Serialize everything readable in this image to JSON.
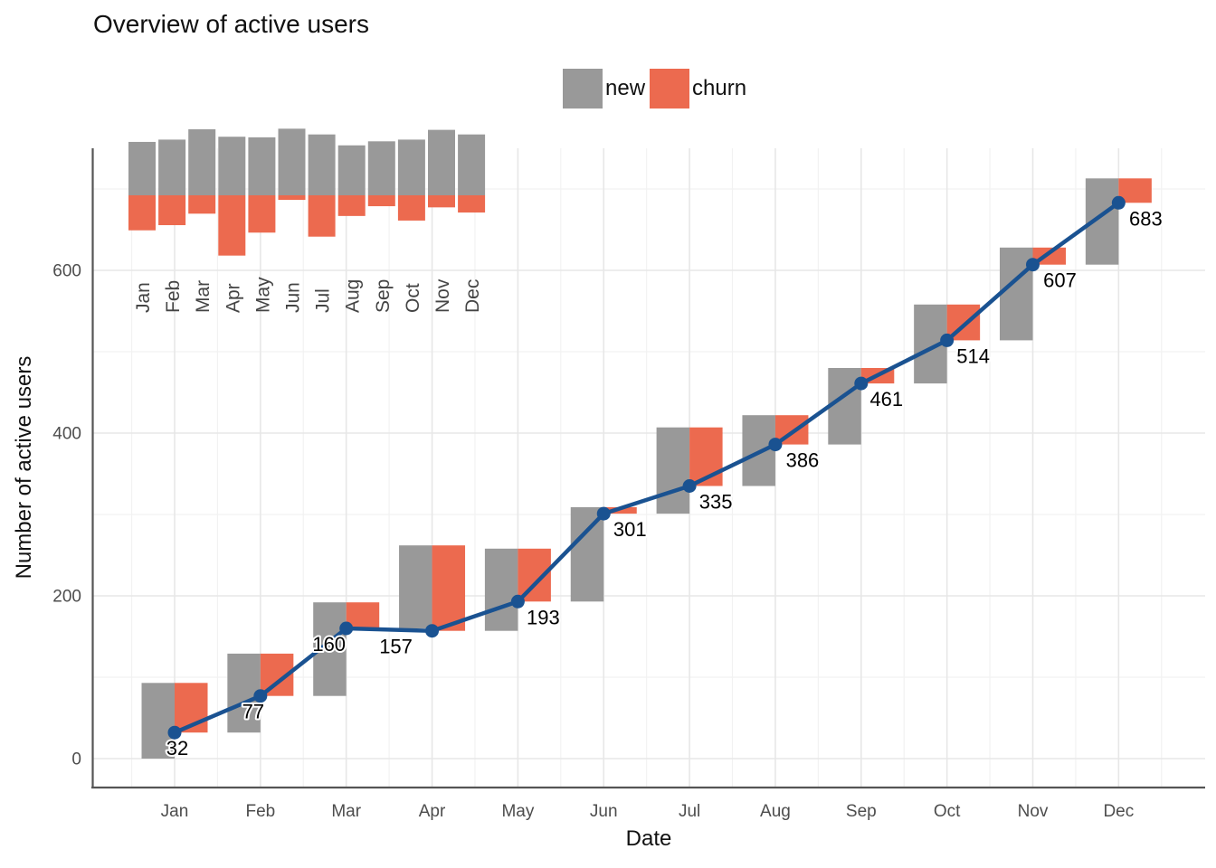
{
  "title": "Overview of active users",
  "legend": {
    "position": "top-center",
    "items": [
      {
        "label": "new",
        "color": "#999999"
      },
      {
        "label": "churn",
        "color": "#EC6A4F"
      }
    ]
  },
  "axes": {
    "x_title": "Date",
    "y_title": "Number of active users",
    "x_tick_labels": [
      "Jan",
      "Feb",
      "Mar",
      "Apr",
      "May",
      "Jun",
      "Jul",
      "Aug",
      "Sep",
      "Oct",
      "Nov",
      "Dec"
    ],
    "y_tick_labels": [
      "0",
      "200",
      "400",
      "600"
    ]
  },
  "colors": {
    "new": "#999999",
    "churn": "#EC6A4F",
    "line": "#1A5291",
    "grid_major": "#E7E7E7",
    "grid_minor": "#F2F2F2",
    "axis_line": "#555555",
    "tick_label": "#4D4D4D",
    "inset_label": "#444444",
    "point_label": "#000000"
  },
  "chart_data": {
    "type": "combo",
    "subtype": "monthly waterfall bars (new up / churn down from running total) with cumulative active-users line",
    "title": "Overview of active users",
    "xlabel": "Date",
    "ylabel": "Number of active users",
    "categories": [
      "Jan",
      "Feb",
      "Mar",
      "Apr",
      "May",
      "Jun",
      "Jul",
      "Aug",
      "Sep",
      "Oct",
      "Nov",
      "Dec"
    ],
    "series": [
      {
        "name": "active_users",
        "type": "line",
        "color": "#1A5291",
        "values": [
          32,
          77,
          160,
          157,
          193,
          301,
          335,
          386,
          461,
          514,
          607,
          683
        ]
      },
      {
        "name": "new",
        "type": "bar",
        "color": "#999999",
        "values": [
          93,
          97,
          115,
          102,
          101,
          116,
          106,
          87,
          94,
          97,
          114,
          106
        ]
      },
      {
        "name": "churn",
        "type": "bar",
        "color": "#EC6A4F",
        "values": [
          61,
          52,
          32,
          105,
          65,
          8,
          72,
          36,
          19,
          44,
          21,
          30
        ]
      }
    ],
    "point_labels": [
      "32",
      "77",
      "160",
      "157",
      "193",
      "301",
      "335",
      "386",
      "461",
      "514",
      "607",
      "683"
    ],
    "y_ticks": [
      0,
      200,
      400,
      600
    ],
    "y_minor_ticks": [
      100,
      300,
      500,
      700
    ],
    "ylim": [
      -34,
      749
    ],
    "grid": true,
    "legend_position": "top-center",
    "annotations": {
      "point_label_dx": [
        3,
        -8,
        -19,
        -40,
        28,
        29,
        29,
        30,
        28,
        29,
        30,
        30
      ],
      "point_label_dy": 25
    },
    "inset": {
      "type": "bar",
      "position": "top-left",
      "description": "Mini diverging bar chart: gray 'new' bars extend up and red 'churn' bars extend down from a common baseline; same monthly values as the main chart, labeled Jan-Dec with vertical text."
    }
  }
}
